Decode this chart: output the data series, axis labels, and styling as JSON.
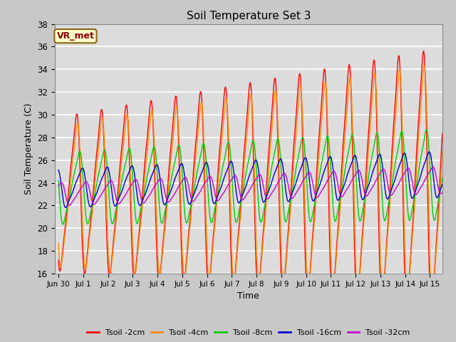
{
  "title": "Soil Temperature Set 3",
  "xlabel": "Time",
  "ylabel": "Soil Temperature (C)",
  "ylim": [
    16,
    38
  ],
  "xlim_start": -0.15,
  "xlim_end": 15.5,
  "annotation": "VR_met",
  "plot_bg_color": "#dcdcdc",
  "fig_bg_color": "#c8c8c8",
  "grid_color": "#ffffff",
  "series_names": [
    "Tsoil -2cm",
    "Tsoil -4cm",
    "Tsoil -8cm",
    "Tsoil -16cm",
    "Tsoil -32cm"
  ],
  "series_colors": [
    "#ff0000",
    "#ff8c00",
    "#00cc00",
    "#0000cc",
    "#cc00cc"
  ],
  "series_linewidths": [
    1.0,
    1.0,
    1.0,
    1.0,
    1.0
  ],
  "xtick_labels": [
    "Jun 30",
    "Jul 1",
    "Jul 2",
    "Jul 3",
    "Jul 4",
    "Jul 5",
    "Jul 6",
    "Jul 7",
    "Jul 8",
    "Jul 9",
    "Jul 10",
    "Jul 11",
    "Jul 12",
    "Jul 13",
    "Jul 14",
    "Jul 15"
  ],
  "xtick_positions": [
    0,
    1,
    2,
    3,
    4,
    5,
    6,
    7,
    8,
    9,
    10,
    11,
    12,
    13,
    14,
    15
  ],
  "ytick_positions": [
    16,
    18,
    20,
    22,
    24,
    26,
    28,
    30,
    32,
    34,
    36,
    38
  ]
}
